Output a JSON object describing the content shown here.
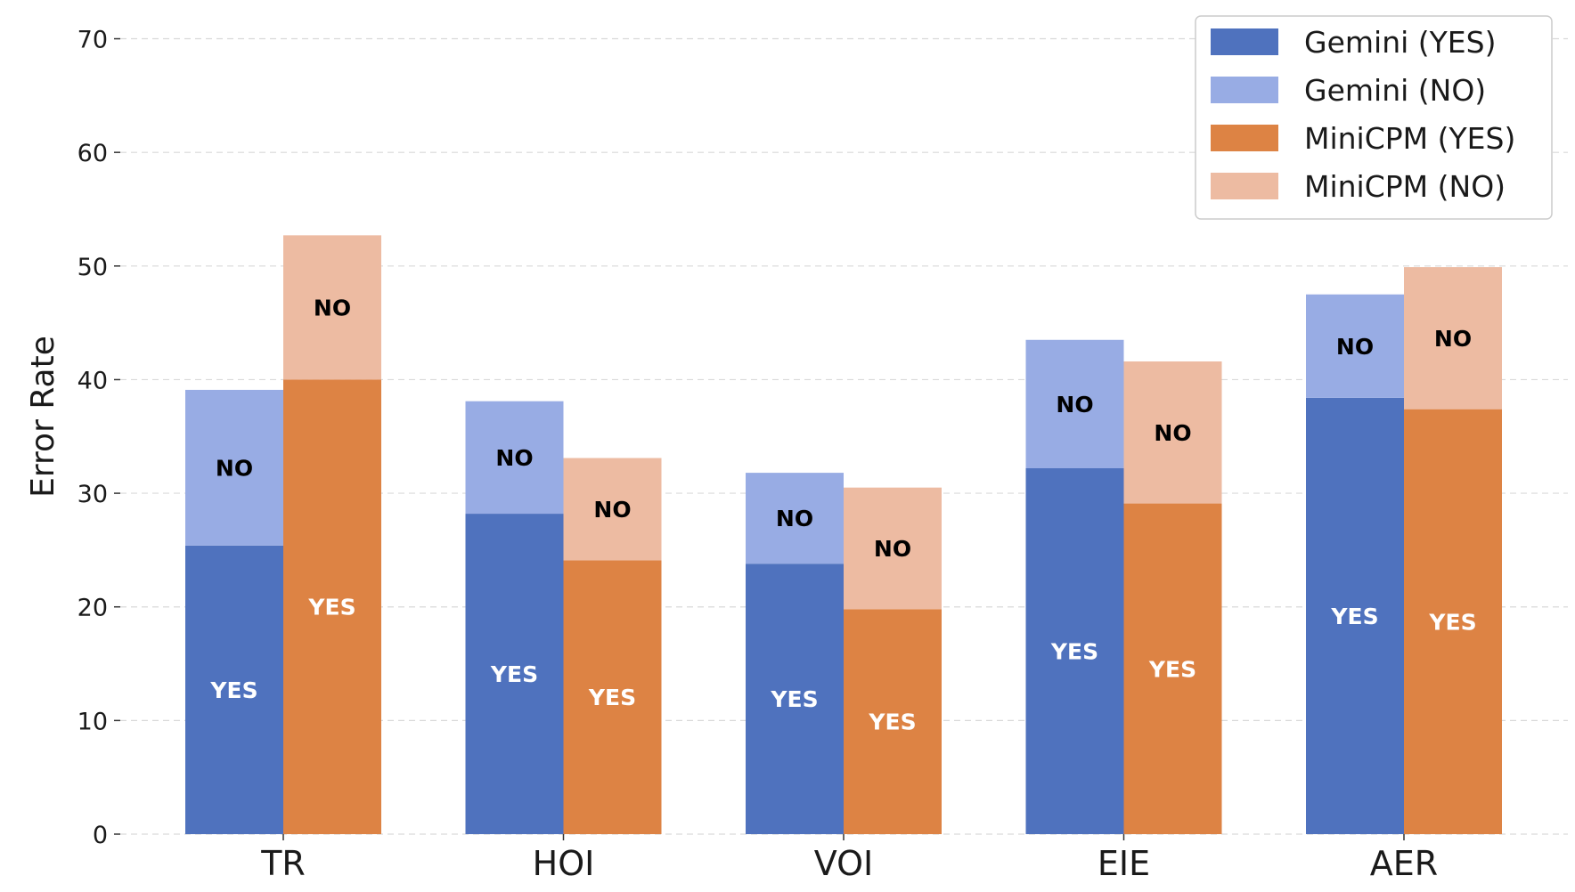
{
  "chart_data": {
    "type": "bar",
    "stacked": true,
    "categories": [
      "TR",
      "HOI",
      "VOI",
      "EIE",
      "AER"
    ],
    "ylabel": "Error Rate",
    "ylim": [
      0,
      72
    ],
    "yticks": [
      0,
      10,
      20,
      30,
      40,
      50,
      60,
      70
    ],
    "grid": true,
    "legend_position": "top-right",
    "series": [
      {
        "name": "Gemini (YES)",
        "group": "Gemini",
        "stack_part": "YES",
        "color": "#4f72be",
        "label_color": "#ffffff",
        "values": [
          25.4,
          28.2,
          23.8,
          32.2,
          38.4
        ]
      },
      {
        "name": "Gemini (NO)",
        "group": "Gemini",
        "stack_part": "NO",
        "color": "#98ace4",
        "label_color": "#000000",
        "values": [
          13.7,
          9.9,
          8.0,
          11.3,
          9.1
        ]
      },
      {
        "name": "MiniCPM (YES)",
        "group": "MiniCPM",
        "stack_part": "YES",
        "color": "#dd8344",
        "label_color": "#ffffff",
        "values": [
          40.0,
          24.1,
          19.8,
          29.1,
          37.4
        ]
      },
      {
        "name": "MiniCPM (NO)",
        "group": "MiniCPM",
        "stack_part": "NO",
        "color": "#edbba2",
        "label_color": "#000000",
        "values": [
          12.7,
          9.0,
          10.7,
          12.5,
          12.5
        ]
      }
    ],
    "segment_labels": {
      "YES": "YES",
      "NO": "NO"
    }
  }
}
